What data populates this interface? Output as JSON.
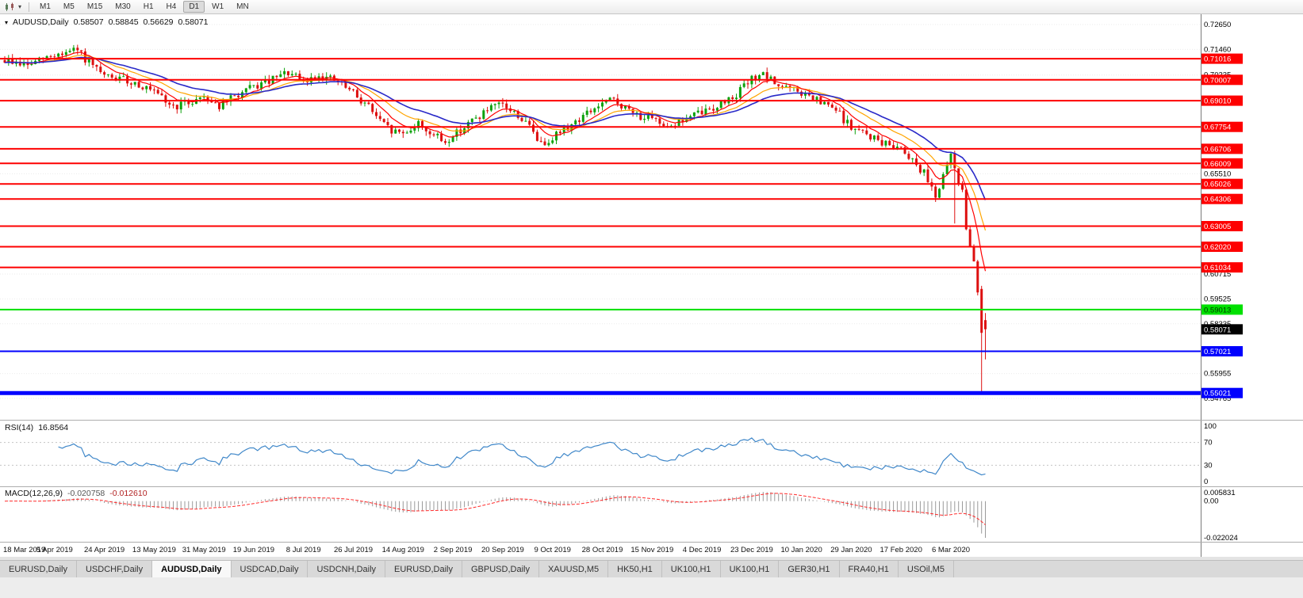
{
  "icons": {
    "symbol_expand": "▾",
    "timeframe_dropdown": "▾"
  },
  "toolbar": {
    "timeframes": [
      "M1",
      "M5",
      "M15",
      "M30",
      "H1",
      "H4",
      "D1",
      "W1",
      "MN"
    ],
    "active_timeframe": "D1"
  },
  "chart": {
    "symbol_title": "AUDUSD,Daily",
    "ohlc": {
      "open": "0.58507",
      "high": "0.58845",
      "low": "0.56629",
      "close": "0.58071"
    },
    "current_price": {
      "text": "0.58071",
      "price": 0.58071,
      "color": "#000000"
    },
    "axis_plain_labels": [
      {
        "text": "0.72650",
        "price": 0.7265
      },
      {
        "text": "0.71460",
        "price": 0.7146
      },
      {
        "text": "0.70235",
        "price": 0.70235
      },
      {
        "text": "0.65510",
        "price": 0.6551
      },
      {
        "text": "0.60715",
        "price": 0.60715
      },
      {
        "text": "0.59525",
        "price": 0.59525
      },
      {
        "text": "0.58335",
        "price": 0.58335
      },
      {
        "text": "0.55955",
        "price": 0.55955
      },
      {
        "text": "0.54765",
        "price": 0.54765
      }
    ],
    "levels": [
      {
        "text": "0.71016",
        "price": 0.71016,
        "color": "#fe0000",
        "width": 2
      },
      {
        "text": "0.70007",
        "price": 0.70007,
        "color": "#fe0000",
        "width": 2
      },
      {
        "text": "0.69010",
        "price": 0.6901,
        "color": "#fe0000",
        "width": 2
      },
      {
        "text": "0.67754",
        "price": 0.67754,
        "color": "#fe0000",
        "width": 2
      },
      {
        "text": "0.66706",
        "price": 0.66706,
        "color": "#fe0000",
        "width": 2
      },
      {
        "text": "0.66009",
        "price": 0.66009,
        "color": "#fe0000",
        "width": 2
      },
      {
        "text": "0.65026",
        "price": 0.65026,
        "color": "#fe0000",
        "width": 2
      },
      {
        "text": "0.64306",
        "price": 0.64306,
        "color": "#fe0000",
        "width": 2
      },
      {
        "text": "0.63005",
        "price": 0.63005,
        "color": "#fe0000",
        "width": 2
      },
      {
        "text": "0.62020",
        "price": 0.6202,
        "color": "#fe0000",
        "width": 2
      },
      {
        "text": "0.61034",
        "price": 0.61034,
        "color": "#fe0000",
        "width": 2
      },
      {
        "text": "0.59013",
        "price": 0.59013,
        "color": "#00e000",
        "width": 2,
        "text_color": "#003300"
      },
      {
        "text": "0.57021",
        "price": 0.57021,
        "color": "#0000fe",
        "width": 2
      },
      {
        "text": "0.55021",
        "price": 0.55021,
        "color": "#0000fe",
        "width": 5
      }
    ]
  },
  "rsi": {
    "title": "RSI(14)",
    "value": "16.8564",
    "axis_labels": [
      {
        "text": "100",
        "value": 100
      },
      {
        "text": "70",
        "value": 70
      },
      {
        "text": "30",
        "value": 30
      },
      {
        "text": "0",
        "value": 0
      }
    ],
    "level_lines": [
      70,
      30
    ],
    "line_color": "#3f87c9"
  },
  "macd": {
    "title": "MACD(12,26,9)",
    "value_main": "-0.020758",
    "value_signal": "-0.012610",
    "axis_labels": {
      "top": "0.005831",
      "zero": "0.00",
      "bottom": "-0.022024"
    },
    "histogram_color": "#9a9a9a",
    "signal_color": "#ff2a2a"
  },
  "dates": [
    "18 Mar 2019",
    "5 Apr 2019",
    "24 Apr 2019",
    "13 May 2019",
    "31 May 2019",
    "19 Jun 2019",
    "8 Jul 2019",
    "26 Jul 2019",
    "14 Aug 2019",
    "2 Sep 2019",
    "20 Sep 2019",
    "9 Oct 2019",
    "28 Oct 2019",
    "15 Nov 2019",
    "4 Dec 2019",
    "23 Dec 2019",
    "10 Jan 2020",
    "29 Jan 2020",
    "17 Feb 2020",
    "6 Mar 2020"
  ],
  "tabs": {
    "labels": [
      "EURUSD,Daily",
      "USDCHF,Daily",
      "AUDUSD,Daily",
      "USDCAD,Daily",
      "USDCNH,Daily",
      "EURUSD,Daily",
      "GBPUSD,Daily",
      "XAUUSD,M5",
      "HK50,H1",
      "UK100,H1",
      "UK100,H1",
      "GER30,H1",
      "FRA40,H1",
      "USOil,M5"
    ],
    "active_index": 2
  },
  "chart_data": {
    "type": "candlestick",
    "symbol": "AUDUSD",
    "timeframe": "Daily",
    "candle_count": 257,
    "label_interval": 13,
    "noise": 0.004,
    "close_anchors": [
      [
        0,
        0.7095
      ],
      [
        6,
        0.707
      ],
      [
        13,
        0.712
      ],
      [
        19,
        0.714
      ],
      [
        23,
        0.706
      ],
      [
        26,
        0.7015
      ],
      [
        31,
        0.7
      ],
      [
        35,
        0.698
      ],
      [
        39,
        0.6935
      ],
      [
        44,
        0.6872
      ],
      [
        48,
        0.689
      ],
      [
        52,
        0.6925
      ],
      [
        56,
        0.6875
      ],
      [
        60,
        0.692
      ],
      [
        65,
        0.6965
      ],
      [
        70,
        0.7
      ],
      [
        74,
        0.7035
      ],
      [
        78,
        0.6985
      ],
      [
        82,
        0.7025
      ],
      [
        87,
        0.699
      ],
      [
        91,
        0.6935
      ],
      [
        95,
        0.6875
      ],
      [
        98,
        0.68
      ],
      [
        101,
        0.6755
      ],
      [
        104,
        0.6745
      ],
      [
        108,
        0.679
      ],
      [
        112,
        0.6735
      ],
      [
        115,
        0.67
      ],
      [
        117,
        0.6735
      ],
      [
        121,
        0.679
      ],
      [
        126,
        0.6855
      ],
      [
        130,
        0.688
      ],
      [
        134,
        0.683
      ],
      [
        138,
        0.6755
      ],
      [
        140,
        0.669
      ],
      [
        143,
        0.673
      ],
      [
        147,
        0.6775
      ],
      [
        152,
        0.684
      ],
      [
        156,
        0.6885
      ],
      [
        159,
        0.6905
      ],
      [
        163,
        0.685
      ],
      [
        169,
        0.6805
      ],
      [
        174,
        0.6785
      ],
      [
        178,
        0.6815
      ],
      [
        182,
        0.6845
      ],
      [
        187,
        0.6885
      ],
      [
        191,
        0.6935
      ],
      [
        195,
        0.7
      ],
      [
        197,
        0.703
      ],
      [
        201,
        0.6985
      ],
      [
        208,
        0.6935
      ],
      [
        213,
        0.689
      ],
      [
        217,
        0.6855
      ],
      [
        221,
        0.677
      ],
      [
        226,
        0.673
      ],
      [
        230,
        0.669
      ],
      [
        234,
        0.668
      ],
      [
        238,
        0.66
      ],
      [
        241,
        0.653
      ],
      [
        243,
        0.645
      ],
      [
        245,
        0.653
      ],
      [
        247,
        0.664
      ],
      [
        248,
        0.658
      ],
      [
        249,
        0.65
      ],
      [
        250,
        0.649
      ],
      [
        251,
        0.629
      ],
      [
        252,
        0.619
      ],
      [
        253,
        0.612
      ],
      [
        254,
        0.599
      ],
      [
        255,
        0.579
      ],
      [
        256,
        0.58071
      ]
    ],
    "ohlc_overrides": {
      "248": {
        "l": 0.6313
      },
      "255": {
        "o": 0.6,
        "h": 0.6015,
        "l": 0.551,
        "c": 0.579
      },
      "256": {
        "o": 0.58507,
        "h": 0.58845,
        "l": 0.56629,
        "c": 0.58071
      }
    },
    "ma_periods": {
      "fast": 8,
      "mid": 17,
      "slow": 30
    },
    "ma_colors": {
      "fast": "#ff0000",
      "mid": "#ffa500",
      "slow": "#2929c8"
    },
    "candle_up_color": "#0ca10c",
    "candle_down_color": "#dd0f0f",
    "rsi_period": 14,
    "macd_params": [
      12,
      26,
      9
    ]
  }
}
